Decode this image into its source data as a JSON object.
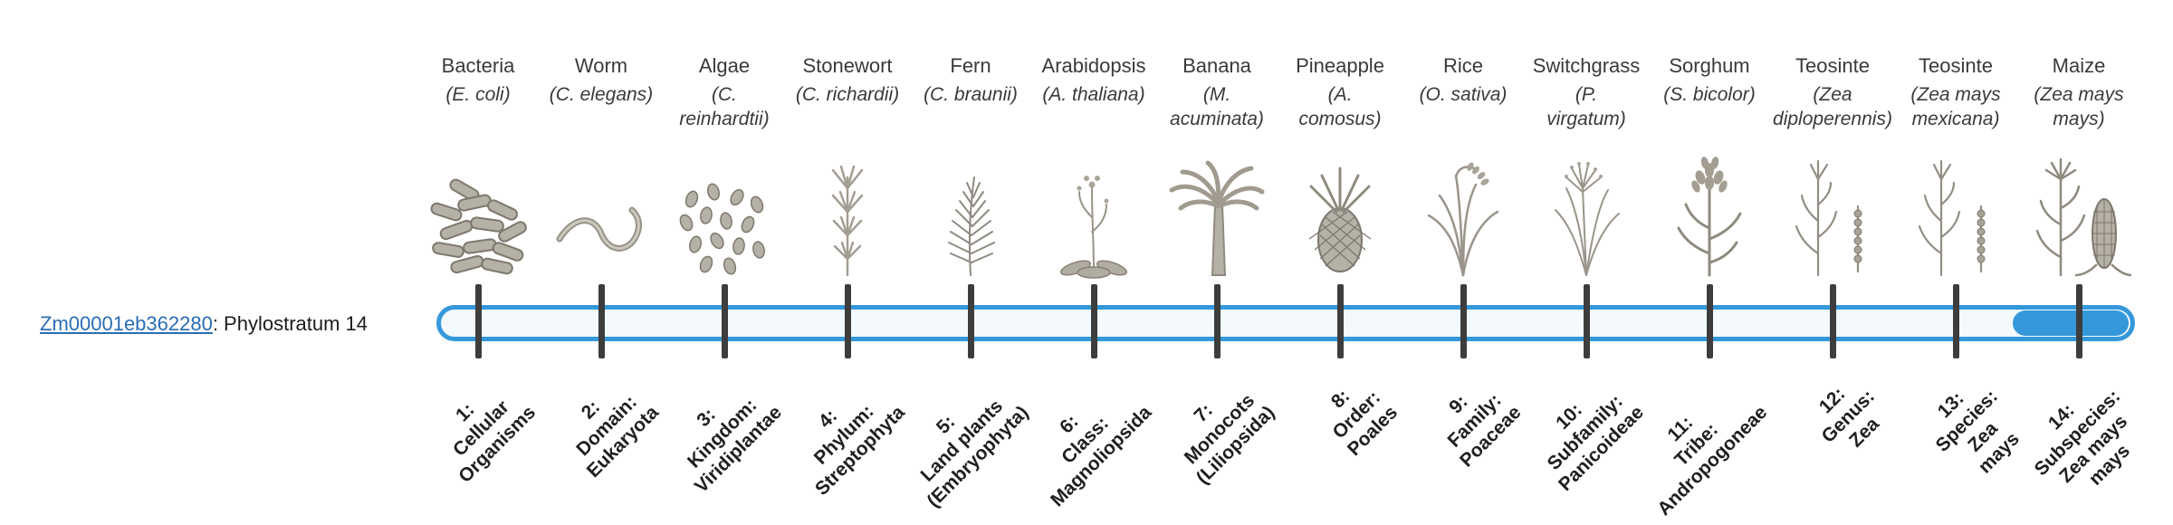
{
  "gene": {
    "id": "Zm00001eb362280",
    "label_suffix": ": Phylostratum 14",
    "phylostratum": 14
  },
  "colors": {
    "bar_blue": "#3498db",
    "bar_track": "#f3f9fd",
    "tick": "#3d3d3d",
    "link_blue": "#2a6db5",
    "text_dark": "#3a3a3a",
    "label_dark": "#1f1f1f"
  },
  "organisms": [
    {
      "name": "Bacteria",
      "sci": "(E. coli)",
      "icon": "bacteria-icon"
    },
    {
      "name": "Worm",
      "sci": "(C. elegans)",
      "icon": "worm-icon"
    },
    {
      "name": "Algae",
      "sci": "(C.\nreinhardtii)",
      "icon": "algae-icon"
    },
    {
      "name": "Stonewort",
      "sci": "(C. richardii)",
      "icon": "stonewort-icon"
    },
    {
      "name": "Fern",
      "sci": "(C. braunii)",
      "icon": "fern-icon"
    },
    {
      "name": "Arabidopsis",
      "sci": "(A. thaliana)",
      "icon": "arabidopsis-icon"
    },
    {
      "name": "Banana",
      "sci": "(M.\nacuminata)",
      "icon": "banana-icon"
    },
    {
      "name": "Pineapple",
      "sci": "(A.\ncomosus)",
      "icon": "pineapple-icon"
    },
    {
      "name": "Rice",
      "sci": "(O. sativa)",
      "icon": "rice-icon"
    },
    {
      "name": "Switchgrass",
      "sci": "(P.\nvirgatum)",
      "icon": "switchgrass-icon"
    },
    {
      "name": "Sorghum",
      "sci": "(S. bicolor)",
      "icon": "sorghum-icon"
    },
    {
      "name": "Teosinte",
      "sci": "(Zea\ndiploperennis)",
      "icon": "teosinte-icon"
    },
    {
      "name": "Teosinte",
      "sci": "(Zea mays\nmexicana)",
      "icon": "teosinte-icon"
    },
    {
      "name": "Maize",
      "sci": "(Zea mays\nmays)",
      "icon": "maize-icon"
    }
  ],
  "strata": [
    "1:\nCellular\nOrganisms",
    "2:\nDomain:\nEukaryota",
    "3:\nKingdom:\nViridiplantae",
    "4:\nPhylum:\nStreptophyta",
    "5:\nLand plants\n(Embryophyta)",
    "6:\nClass:\nMagnoliopsida",
    "7:\nMonocots\n(Liliopsida)",
    "8:\nOrder:\nPoales",
    "9:\nFamily:\nPoaceae",
    "10:\nSubfamily:\nPanicoideae",
    "11:\nTribe:\nAndropogoneae",
    "12:\nGenus:\nZea",
    "13:\nSpecies:\nZea\nmays",
    "14:\nSubspecies:\nZea mays\nmays"
  ]
}
